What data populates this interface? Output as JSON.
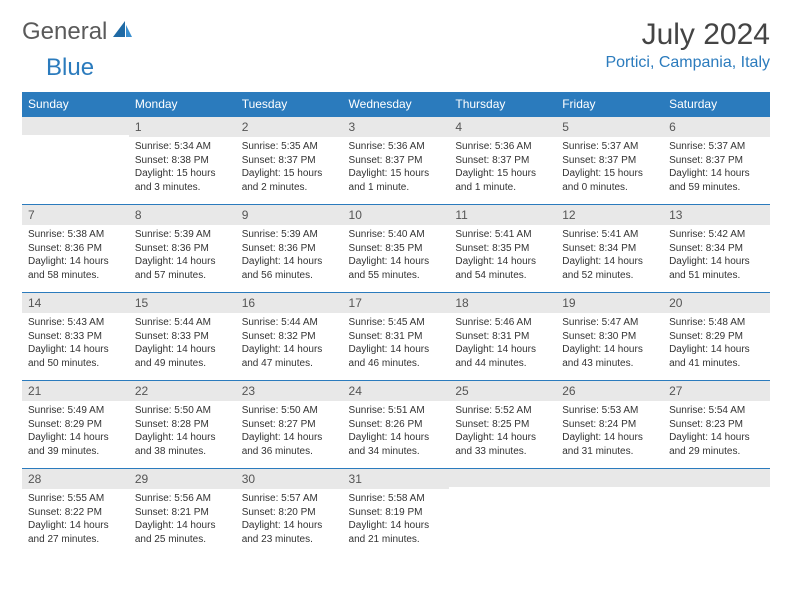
{
  "logo": {
    "text1": "General",
    "text2": "Blue"
  },
  "title": "July 2024",
  "location": "Portici, Campania, Italy",
  "colors": {
    "brand": "#2b7bbd",
    "header_bg": "#2b7bbd",
    "header_text": "#ffffff",
    "daynum_bg": "#e8e8e8",
    "text": "#333333"
  },
  "weekdays": [
    "Sunday",
    "Monday",
    "Tuesday",
    "Wednesday",
    "Thursday",
    "Friday",
    "Saturday"
  ],
  "weeks": [
    [
      null,
      {
        "n": "1",
        "sr": "5:34 AM",
        "ss": "8:38 PM",
        "dl": "15 hours and 3 minutes."
      },
      {
        "n": "2",
        "sr": "5:35 AM",
        "ss": "8:37 PM",
        "dl": "15 hours and 2 minutes."
      },
      {
        "n": "3",
        "sr": "5:36 AM",
        "ss": "8:37 PM",
        "dl": "15 hours and 1 minute."
      },
      {
        "n": "4",
        "sr": "5:36 AM",
        "ss": "8:37 PM",
        "dl": "15 hours and 1 minute."
      },
      {
        "n": "5",
        "sr": "5:37 AM",
        "ss": "8:37 PM",
        "dl": "15 hours and 0 minutes."
      },
      {
        "n": "6",
        "sr": "5:37 AM",
        "ss": "8:37 PM",
        "dl": "14 hours and 59 minutes."
      }
    ],
    [
      {
        "n": "7",
        "sr": "5:38 AM",
        "ss": "8:36 PM",
        "dl": "14 hours and 58 minutes."
      },
      {
        "n": "8",
        "sr": "5:39 AM",
        "ss": "8:36 PM",
        "dl": "14 hours and 57 minutes."
      },
      {
        "n": "9",
        "sr": "5:39 AM",
        "ss": "8:36 PM",
        "dl": "14 hours and 56 minutes."
      },
      {
        "n": "10",
        "sr": "5:40 AM",
        "ss": "8:35 PM",
        "dl": "14 hours and 55 minutes."
      },
      {
        "n": "11",
        "sr": "5:41 AM",
        "ss": "8:35 PM",
        "dl": "14 hours and 54 minutes."
      },
      {
        "n": "12",
        "sr": "5:41 AM",
        "ss": "8:34 PM",
        "dl": "14 hours and 52 minutes."
      },
      {
        "n": "13",
        "sr": "5:42 AM",
        "ss": "8:34 PM",
        "dl": "14 hours and 51 minutes."
      }
    ],
    [
      {
        "n": "14",
        "sr": "5:43 AM",
        "ss": "8:33 PM",
        "dl": "14 hours and 50 minutes."
      },
      {
        "n": "15",
        "sr": "5:44 AM",
        "ss": "8:33 PM",
        "dl": "14 hours and 49 minutes."
      },
      {
        "n": "16",
        "sr": "5:44 AM",
        "ss": "8:32 PM",
        "dl": "14 hours and 47 minutes."
      },
      {
        "n": "17",
        "sr": "5:45 AM",
        "ss": "8:31 PM",
        "dl": "14 hours and 46 minutes."
      },
      {
        "n": "18",
        "sr": "5:46 AM",
        "ss": "8:31 PM",
        "dl": "14 hours and 44 minutes."
      },
      {
        "n": "19",
        "sr": "5:47 AM",
        "ss": "8:30 PM",
        "dl": "14 hours and 43 minutes."
      },
      {
        "n": "20",
        "sr": "5:48 AM",
        "ss": "8:29 PM",
        "dl": "14 hours and 41 minutes."
      }
    ],
    [
      {
        "n": "21",
        "sr": "5:49 AM",
        "ss": "8:29 PM",
        "dl": "14 hours and 39 minutes."
      },
      {
        "n": "22",
        "sr": "5:50 AM",
        "ss": "8:28 PM",
        "dl": "14 hours and 38 minutes."
      },
      {
        "n": "23",
        "sr": "5:50 AM",
        "ss": "8:27 PM",
        "dl": "14 hours and 36 minutes."
      },
      {
        "n": "24",
        "sr": "5:51 AM",
        "ss": "8:26 PM",
        "dl": "14 hours and 34 minutes."
      },
      {
        "n": "25",
        "sr": "5:52 AM",
        "ss": "8:25 PM",
        "dl": "14 hours and 33 minutes."
      },
      {
        "n": "26",
        "sr": "5:53 AM",
        "ss": "8:24 PM",
        "dl": "14 hours and 31 minutes."
      },
      {
        "n": "27",
        "sr": "5:54 AM",
        "ss": "8:23 PM",
        "dl": "14 hours and 29 minutes."
      }
    ],
    [
      {
        "n": "28",
        "sr": "5:55 AM",
        "ss": "8:22 PM",
        "dl": "14 hours and 27 minutes."
      },
      {
        "n": "29",
        "sr": "5:56 AM",
        "ss": "8:21 PM",
        "dl": "14 hours and 25 minutes."
      },
      {
        "n": "30",
        "sr": "5:57 AM",
        "ss": "8:20 PM",
        "dl": "14 hours and 23 minutes."
      },
      {
        "n": "31",
        "sr": "5:58 AM",
        "ss": "8:19 PM",
        "dl": "14 hours and 21 minutes."
      },
      null,
      null,
      null
    ]
  ],
  "labels": {
    "sunrise": "Sunrise:",
    "sunset": "Sunset:",
    "daylight": "Daylight:"
  }
}
